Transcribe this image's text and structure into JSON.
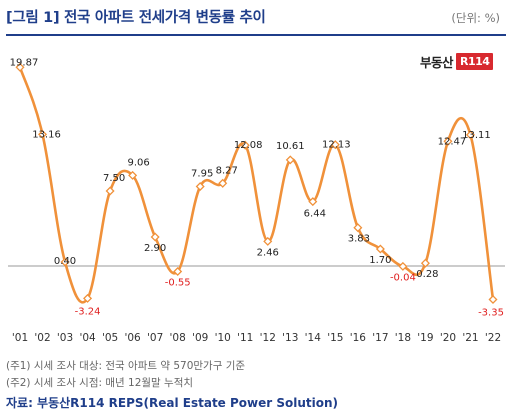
{
  "header": {
    "title": "[그림 1] 전국 아파트 전세가격 변동률 추이",
    "unit": "(단위: %)"
  },
  "logo": {
    "text": "부동산",
    "badge": "R114",
    "badge_color": "#d8292f"
  },
  "footer": {
    "note1": "(주1) 시세 조사 대상: 전국 아파트 약 570만가구 기준",
    "note2": "(주2) 시세 조사 시점: 매년 12월말 누적치",
    "source": "자료: 부동산R114 REPS(Real Estate Power Solution)"
  },
  "colors": {
    "title": "#1f3e8a",
    "line": "#f0913a",
    "negative_label": "#e02020",
    "positive_label": "#222222"
  },
  "chart_data": {
    "type": "line",
    "smooth": true,
    "categories": [
      "'01",
      "'02",
      "'03",
      "'04",
      "'05",
      "'06",
      "'07",
      "'08",
      "'09",
      "'10",
      "'11",
      "'12",
      "'13",
      "'14",
      "'15",
      "'16",
      "'17",
      "'18",
      "'19",
      "'20",
      "'21",
      "'22"
    ],
    "series": [
      {
        "values": [
          19.87,
          13.16,
          0.4,
          -3.24,
          7.5,
          9.06,
          2.9,
          -0.55,
          7.95,
          8.27,
          12.08,
          2.46,
          10.61,
          6.44,
          12.13,
          3.83,
          1.7,
          -0.04,
          0.28,
          12.47,
          13.11,
          -3.35
        ],
        "labels": [
          "19.87",
          "13.16",
          "0.40",
          "-3.24",
          "7.50",
          "9.06",
          "2.90",
          "-0.55",
          "7.95",
          "8.27",
          "12.08",
          "2.46",
          "10.61",
          "6.44",
          "12.13",
          "3.83",
          "1.70",
          "-0.04",
          "0.28",
          "12.47",
          "13.11",
          "-3.35"
        ]
      }
    ],
    "ylim": [
      -6,
      22
    ],
    "baseline": 0,
    "grid": false,
    "legend": "none",
    "markers": "hollow-diamond"
  }
}
